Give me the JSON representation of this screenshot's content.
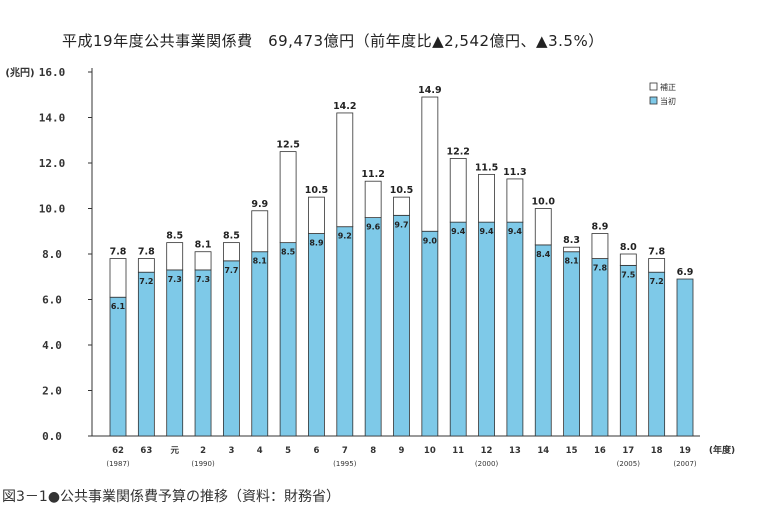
{
  "chart_data": {
    "type": "bar",
    "stacked": true,
    "title": "平成19年度公共事業関係費　69,473億円（前年度比▲2,542億円、▲3.5%）",
    "ylabel": "(兆円)",
    "xlabel": "(年度)",
    "ylim": [
      0,
      16
    ],
    "yticks": [
      "0.0",
      "2.0",
      "4.0",
      "6.0",
      "8.0",
      "10.0",
      "12.0",
      "14.0",
      "16.0"
    ],
    "grid": false,
    "legend_position": "top-right",
    "categories": [
      "62",
      "63",
      "元",
      "2",
      "3",
      "4",
      "5",
      "6",
      "7",
      "8",
      "9",
      "10",
      "11",
      "12",
      "13",
      "14",
      "15",
      "16",
      "17",
      "18",
      "19"
    ],
    "sub_labels": [
      "(1987)",
      "",
      "",
      "(1990)",
      "",
      "",
      "",
      "",
      "(1995)",
      "",
      "",
      "",
      "",
      "(2000)",
      "",
      "",
      "",
      "",
      "(2005)",
      "",
      "(2007)"
    ],
    "series": [
      {
        "name": "当初",
        "color": "#7ec9e8",
        "values": [
          6.1,
          7.2,
          7.3,
          7.3,
          7.7,
          8.1,
          8.5,
          8.9,
          9.2,
          9.6,
          9.7,
          9.0,
          9.4,
          9.4,
          9.4,
          8.4,
          8.1,
          7.8,
          7.5,
          7.2,
          6.9
        ]
      },
      {
        "name": "補正",
        "color": "#ffffff",
        "values": [
          1.7,
          0.6,
          1.2,
          0.8,
          0.8,
          1.8,
          4.0,
          1.6,
          5.0,
          1.6,
          0.8,
          5.9,
          2.8,
          2.1,
          1.9,
          1.6,
          0.2,
          1.1,
          0.5,
          0.6,
          0.0
        ]
      }
    ],
    "inner_labels": [
      "6.1",
      "7.2",
      "7.3",
      "7.3",
      "7.7",
      "8.1",
      "8.5",
      "8.9",
      "9.2",
      "9.6",
      "9.7",
      "9.0",
      "9.4",
      "9.4",
      "9.4",
      "8.4",
      "8.1",
      "7.8",
      "7.5",
      "7.2",
      ""
    ],
    "total_labels": [
      "7.8",
      "7.8",
      "8.5",
      "8.1",
      "8.5",
      "9.9",
      "12.5",
      "10.5",
      "14.2",
      "11.2",
      "10.5",
      "14.9",
      "12.2",
      "11.5",
      "11.3",
      "10.0",
      "8.3",
      "8.9",
      "8.0",
      "7.8",
      "6.9"
    ]
  },
  "caption": "図3－1●公共事業関係費予算の推移（資料：財務省）"
}
